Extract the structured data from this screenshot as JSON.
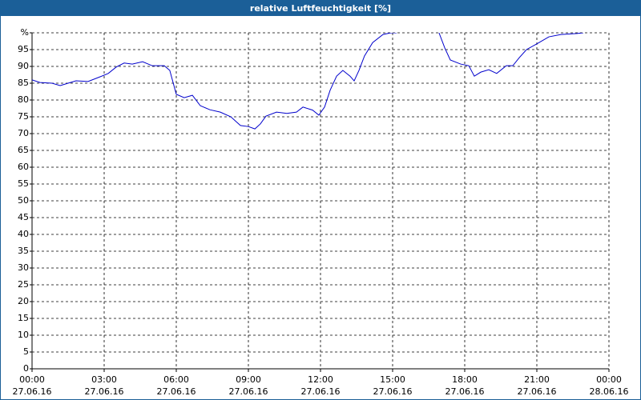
{
  "chart_data": {
    "type": "line",
    "title": "relative Luftfeuchtigkeit [%]",
    "color": "#0000cc",
    "grid": true,
    "xlim": [
      0,
      24
    ],
    "xticks": [
      {
        "value": 0,
        "label": "00:00"
      },
      {
        "value": 3,
        "label": "03:00"
      },
      {
        "value": 6,
        "label": "06:00"
      },
      {
        "value": 9,
        "label": "09:00"
      },
      {
        "value": 12,
        "label": "12:00"
      },
      {
        "value": 15,
        "label": "15:00"
      },
      {
        "value": 18,
        "label": "18:00"
      },
      {
        "value": 21,
        "label": "21:00"
      },
      {
        "value": 24,
        "label": "00:00"
      }
    ],
    "xtick_dates": [
      "27.06.16",
      "27.06.16",
      "27.06.16",
      "27.06.16",
      "27.06.16",
      "27.06.16",
      "27.06.16",
      "27.06.16",
      "28.06.16"
    ],
    "ylim": [
      0,
      100
    ],
    "yticks": [
      0,
      5,
      10,
      15,
      20,
      25,
      30,
      35,
      40,
      45,
      50,
      55,
      60,
      65,
      70,
      75,
      80,
      85,
      90,
      95,
      {
        "value": 100,
        "label": "%"
      }
    ],
    "x": [
      0,
      0.33,
      0.83,
      1.17,
      1.5,
      1.83,
      2.33,
      2.83,
      3.17,
      3.5,
      3.83,
      4.17,
      4.6,
      5,
      5.5,
      5.73,
      6,
      6.33,
      6.67,
      7,
      7.4,
      7.83,
      8.27,
      8.67,
      9,
      9.27,
      9.5,
      9.73,
      10.17,
      10.6,
      11,
      11.27,
      11.67,
      11.93,
      12.17,
      12.4,
      12.67,
      12.93,
      13.23,
      13.4,
      13.6,
      13.83,
      14.17,
      14.6,
      14.93,
      15.17,
      16.5,
      16.93,
      17.17,
      17.4,
      17.83,
      18.17,
      18.4,
      18.67,
      19,
      19.33,
      19.73,
      20,
      20.27,
      20.57,
      21,
      21.5,
      22,
      22.67,
      22.93
    ],
    "values": [
      86,
      85.2,
      85,
      84.3,
      85,
      85.7,
      85.5,
      86.9,
      87.9,
      89.8,
      91,
      90.7,
      91.4,
      90.2,
      90.2,
      88.8,
      81.7,
      80.7,
      81.4,
      78.3,
      77.1,
      76.4,
      75,
      72.4,
      72.1,
      71.4,
      72.9,
      75.2,
      76.4,
      76,
      76.4,
      77.9,
      77,
      75.5,
      77.9,
      82.9,
      87.1,
      88.8,
      87.1,
      85.7,
      88.8,
      93.1,
      97.1,
      99.5,
      100,
      100,
      null,
      100,
      95.5,
      91.9,
      90.7,
      90.2,
      87.1,
      88.3,
      89,
      87.9,
      90.2,
      90.2,
      92.6,
      95,
      96.7,
      98.8,
      99.5,
      99.8,
      100
    ]
  }
}
